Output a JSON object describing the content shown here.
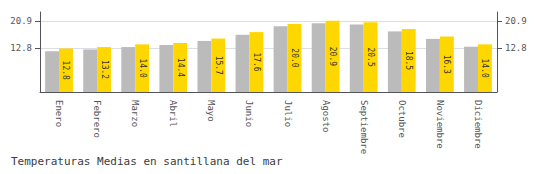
{
  "chart_data": {
    "type": "bar",
    "title": "Temperaturas Medias en santillana del mar",
    "categories": [
      "Enero",
      "Febrero",
      "Marzo",
      "Abril",
      "Mayo",
      "Junio",
      "Julio",
      "Agosto",
      "Septiembre",
      "Octubre",
      "Noviembre",
      "Diciembre"
    ],
    "series": [
      {
        "color": "#BBBBBB",
        "values": [
          12.0,
          12.5,
          13.2,
          13.8,
          15.0,
          16.8,
          19.3,
          20.2,
          19.8,
          17.8,
          15.6,
          13.3
        ]
      },
      {
        "color": "#FFD700",
        "values": [
          12.8,
          13.2,
          14.0,
          14.4,
          15.7,
          17.6,
          20.0,
          20.9,
          20.5,
          18.5,
          16.3,
          14.0
        ],
        "value_labels": [
          "12.8",
          "13.2",
          "14.0",
          "14.4",
          "15.7",
          "17.6",
          "20.0",
          "20.9",
          "20.5",
          "18.5",
          "16.3",
          "14.0"
        ],
        "data_labels": true
      }
    ],
    "ylim": [
      0,
      23.5
    ],
    "yticks": [
      12.8,
      20.9
    ],
    "grid": true
  }
}
